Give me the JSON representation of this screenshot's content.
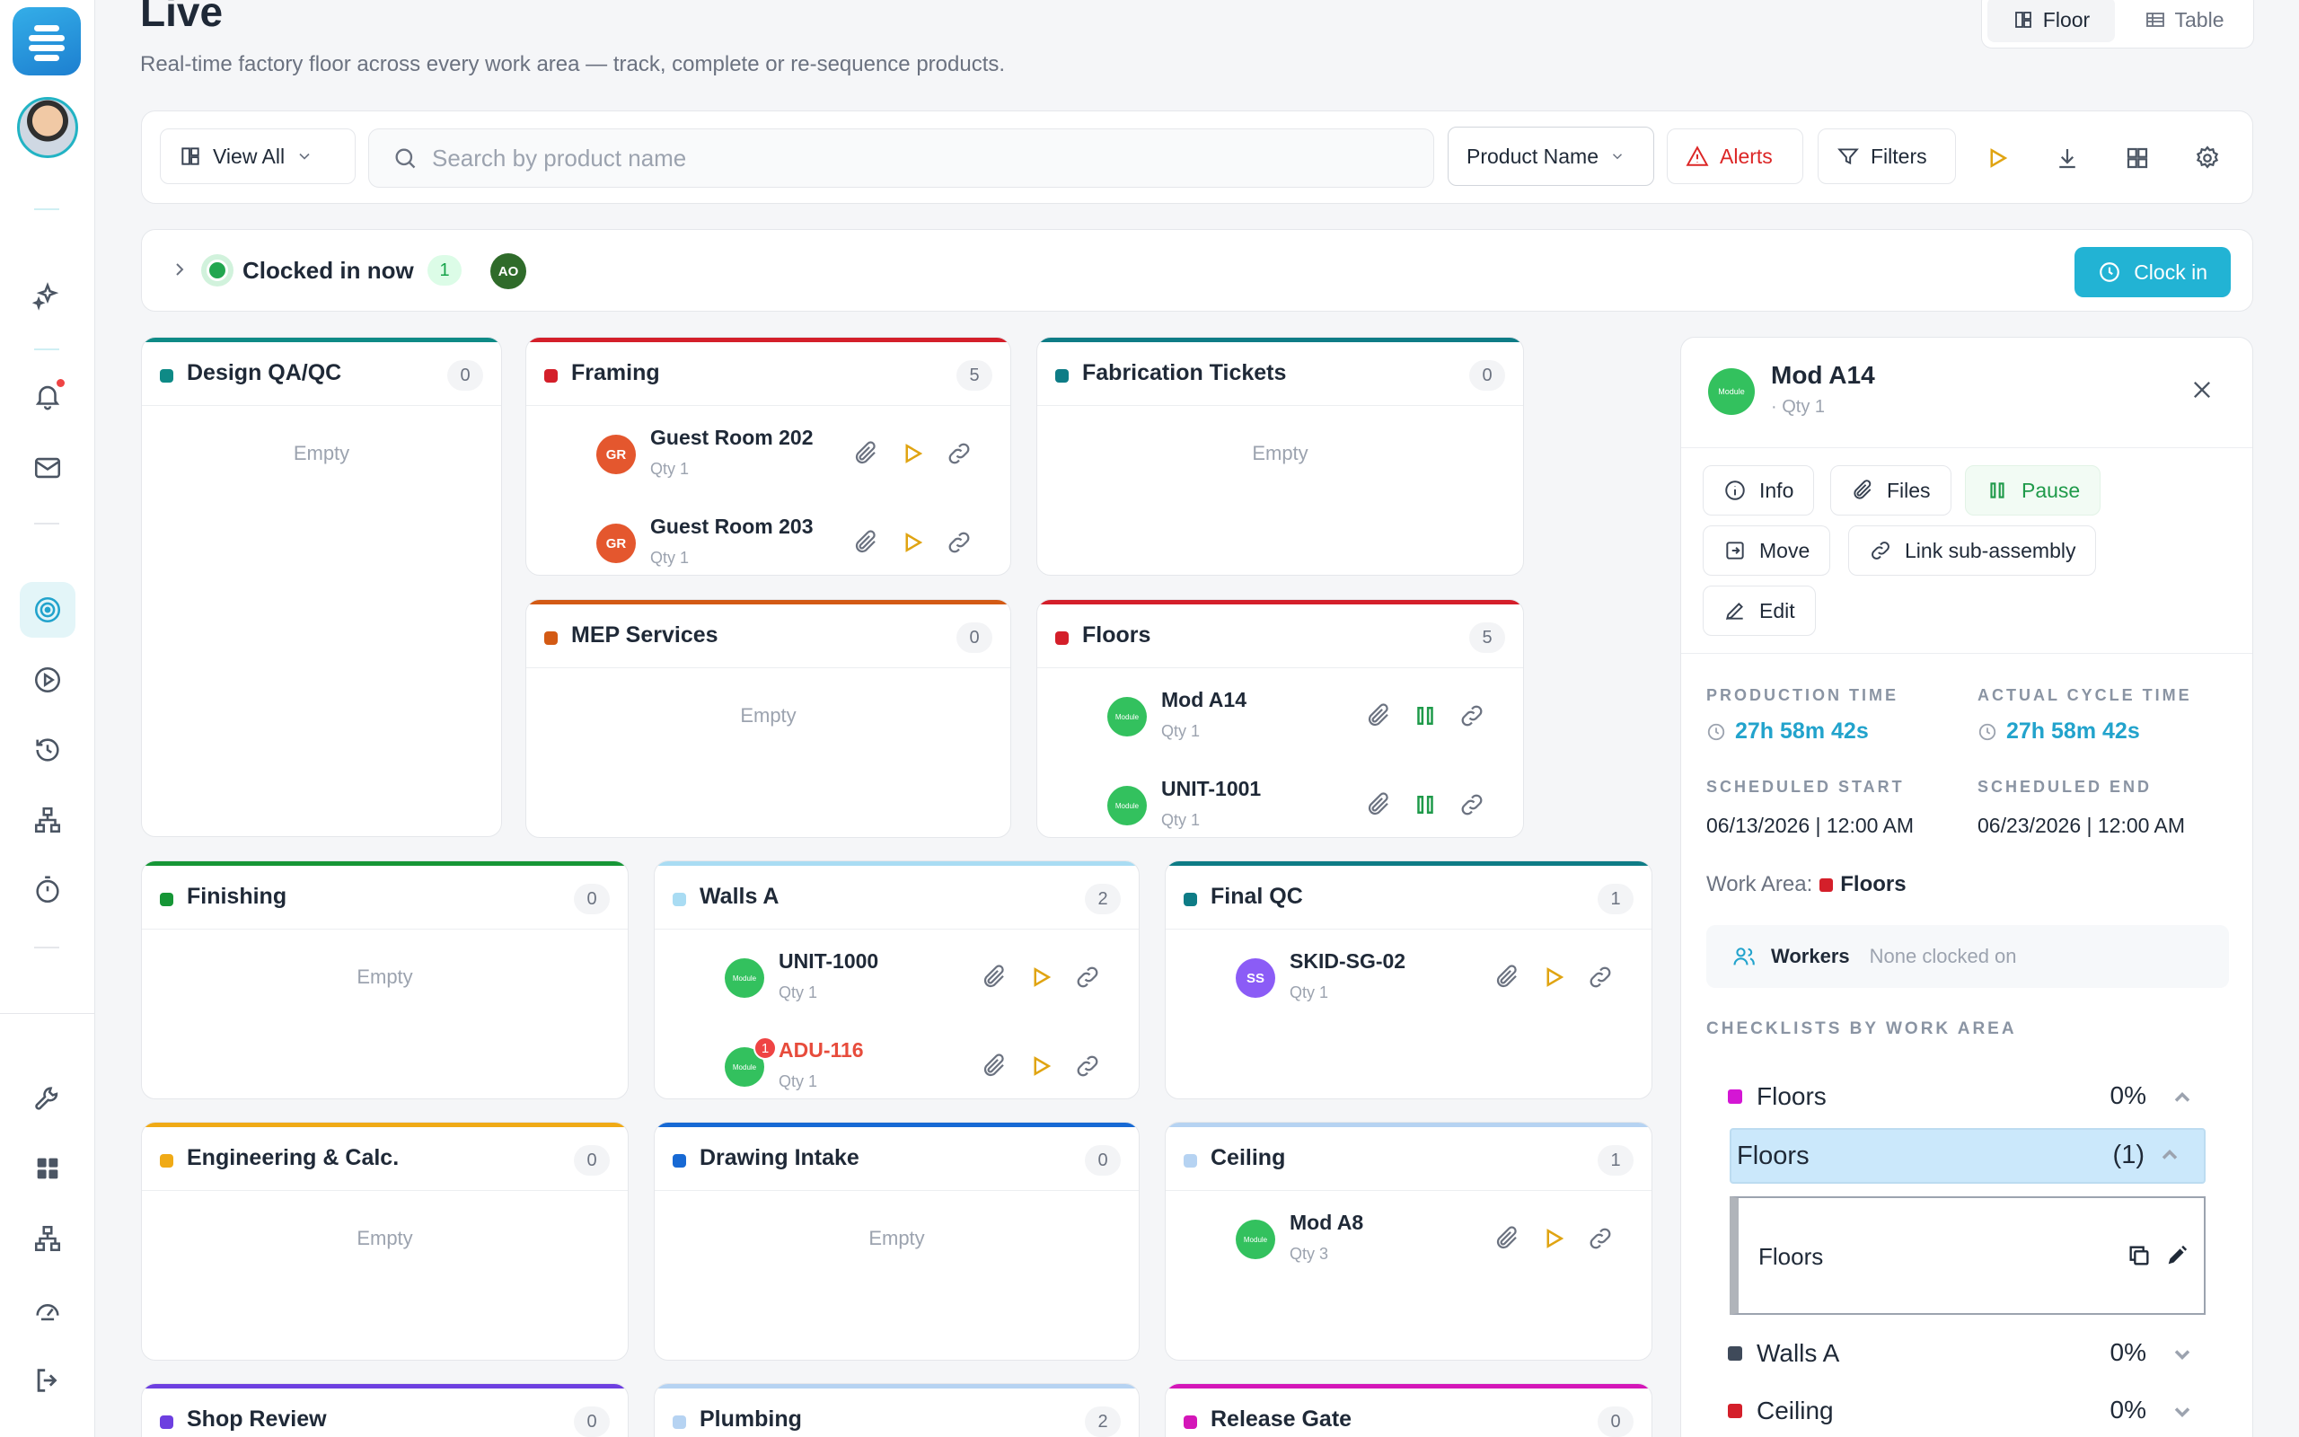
{
  "header": {
    "title": "Live",
    "subtitle": "Real-time factory floor across every work area — track, complete or re-sequence products.",
    "view_toggle": {
      "floor_label": "Floor",
      "table_label": "Table"
    }
  },
  "toolbar": {
    "view_all_label": "View All",
    "search_placeholder": "Search by product name",
    "sort_label": "Product Name",
    "alerts_label": "Alerts",
    "filters_label": "Filters"
  },
  "clocked": {
    "label": "Clocked in now",
    "count": "1",
    "avatar_initials": "AO",
    "clock_in_label": "Clock in"
  },
  "sidebar": {
    "icons": [
      "sparkles-icon",
      "bell-icon",
      "mail-icon",
      "target-icon",
      "play-icon",
      "history-icon",
      "hierarchy-icon",
      "stopwatch-icon",
      "wrench-icon",
      "grid-icon",
      "sitemap-icon",
      "gauge-icon",
      "logout-icon"
    ]
  },
  "work_areas": [
    {
      "title": "Design QA/QC",
      "count": "0",
      "color": "#0e8a86",
      "empty": "Empty",
      "items": []
    },
    {
      "title": "Framing",
      "count": "5",
      "color": "#d41f2a",
      "empty": "",
      "items": [
        {
          "avatar": "GR",
          "kind": "gr",
          "name": "Guest Room 202",
          "qty": "Qty 1",
          "action": "play"
        },
        {
          "avatar": "GR",
          "kind": "gr",
          "name": "Guest Room 203",
          "qty": "Qty 1",
          "action": "play"
        }
      ]
    },
    {
      "title": "Fabrication Tickets",
      "count": "0",
      "color": "#0e7c86",
      "empty": "Empty",
      "items": []
    },
    {
      "title": "MEP Services",
      "count": "0",
      "color": "#d35a14",
      "empty": "Empty",
      "items": []
    },
    {
      "title": "Floors",
      "count": "5",
      "color": "#d41f2a",
      "empty": "",
      "items": [
        {
          "avatar": "Module",
          "kind": "mod",
          "name": "Mod A14",
          "qty": "Qty 1",
          "action": "pause"
        },
        {
          "avatar": "Module",
          "kind": "mod",
          "name": "UNIT-1001",
          "qty": "Qty 1",
          "action": "pause"
        }
      ]
    },
    {
      "title": "Finishing",
      "count": "0",
      "color": "#169636",
      "empty": "Empty",
      "items": []
    },
    {
      "title": "Walls A",
      "count": "2",
      "color": "#a9dcf3",
      "empty": "",
      "items": [
        {
          "avatar": "Module",
          "kind": "mod",
          "name": "UNIT-1000",
          "qty": "Qty 1",
          "action": "play"
        },
        {
          "avatar": "Module",
          "kind": "mod",
          "name": "ADU-116",
          "qty": "Qty 1",
          "action": "play",
          "alert": "1"
        }
      ]
    },
    {
      "title": "Final QC",
      "count": "1",
      "color": "#0e7c86",
      "empty": "",
      "items": [
        {
          "avatar": "SS",
          "kind": "ss",
          "name": "SKID-SG-02",
          "qty": "Qty 1",
          "action": "play"
        }
      ]
    },
    {
      "title": "Engineering & Calc.",
      "count": "0",
      "color": "#f0aa16",
      "empty": "Empty",
      "items": []
    },
    {
      "title": "Drawing Intake",
      "count": "0",
      "color": "#1769d4",
      "empty": "Empty",
      "items": []
    },
    {
      "title": "Ceiling",
      "count": "1",
      "color": "#b6d3f2",
      "empty": "",
      "items": [
        {
          "avatar": "Module",
          "kind": "mod",
          "name": "Mod A8",
          "qty": "Qty 3",
          "action": "play"
        }
      ]
    },
    {
      "title": "Shop Review",
      "count": "0",
      "color": "#6d3fe0",
      "empty": "",
      "items": []
    },
    {
      "title": "Plumbing",
      "count": "2",
      "color": "#b6d3f2",
      "empty": "",
      "items": []
    },
    {
      "title": "Release Gate",
      "count": "0",
      "color": "#d416b8",
      "empty": "",
      "items": []
    }
  ],
  "panel": {
    "avatar": "Module",
    "title": "Mod A14",
    "subtitle": "· Qty 1",
    "buttons": {
      "info": "Info",
      "files": "Files",
      "pause": "Pause",
      "move": "Move",
      "link": "Link sub-assembly",
      "edit": "Edit"
    },
    "production_time_label": "PRODUCTION TIME",
    "production_time": "27h 58m 42s",
    "cycle_time_label": "ACTUAL CYCLE TIME",
    "cycle_time": "27h 58m 42s",
    "scheduled_start_label": "SCHEDULED START",
    "scheduled_start": "06/13/2026 | 12:00 AM",
    "scheduled_end_label": "SCHEDULED END",
    "scheduled_end": "06/23/2026 | 12:00 AM",
    "work_area_label": "Work Area:",
    "work_area": "Floors",
    "workers_label": "Workers",
    "workers_value": "None clocked on",
    "checklists_heading": "CHECKLISTS BY WORK AREA",
    "checklists": [
      {
        "name": "Floors",
        "pct": "0%",
        "color": "#d416d4",
        "open": true
      },
      {
        "name": "Walls A",
        "pct": "0%",
        "color": "#3f4a5a",
        "open": false
      },
      {
        "name": "Ceiling",
        "pct": "0%",
        "color": "#d41f2a",
        "open": false
      }
    ],
    "checklist_group": {
      "name": "Floors",
      "count": "(1)"
    },
    "checklist_item": "Floors"
  }
}
